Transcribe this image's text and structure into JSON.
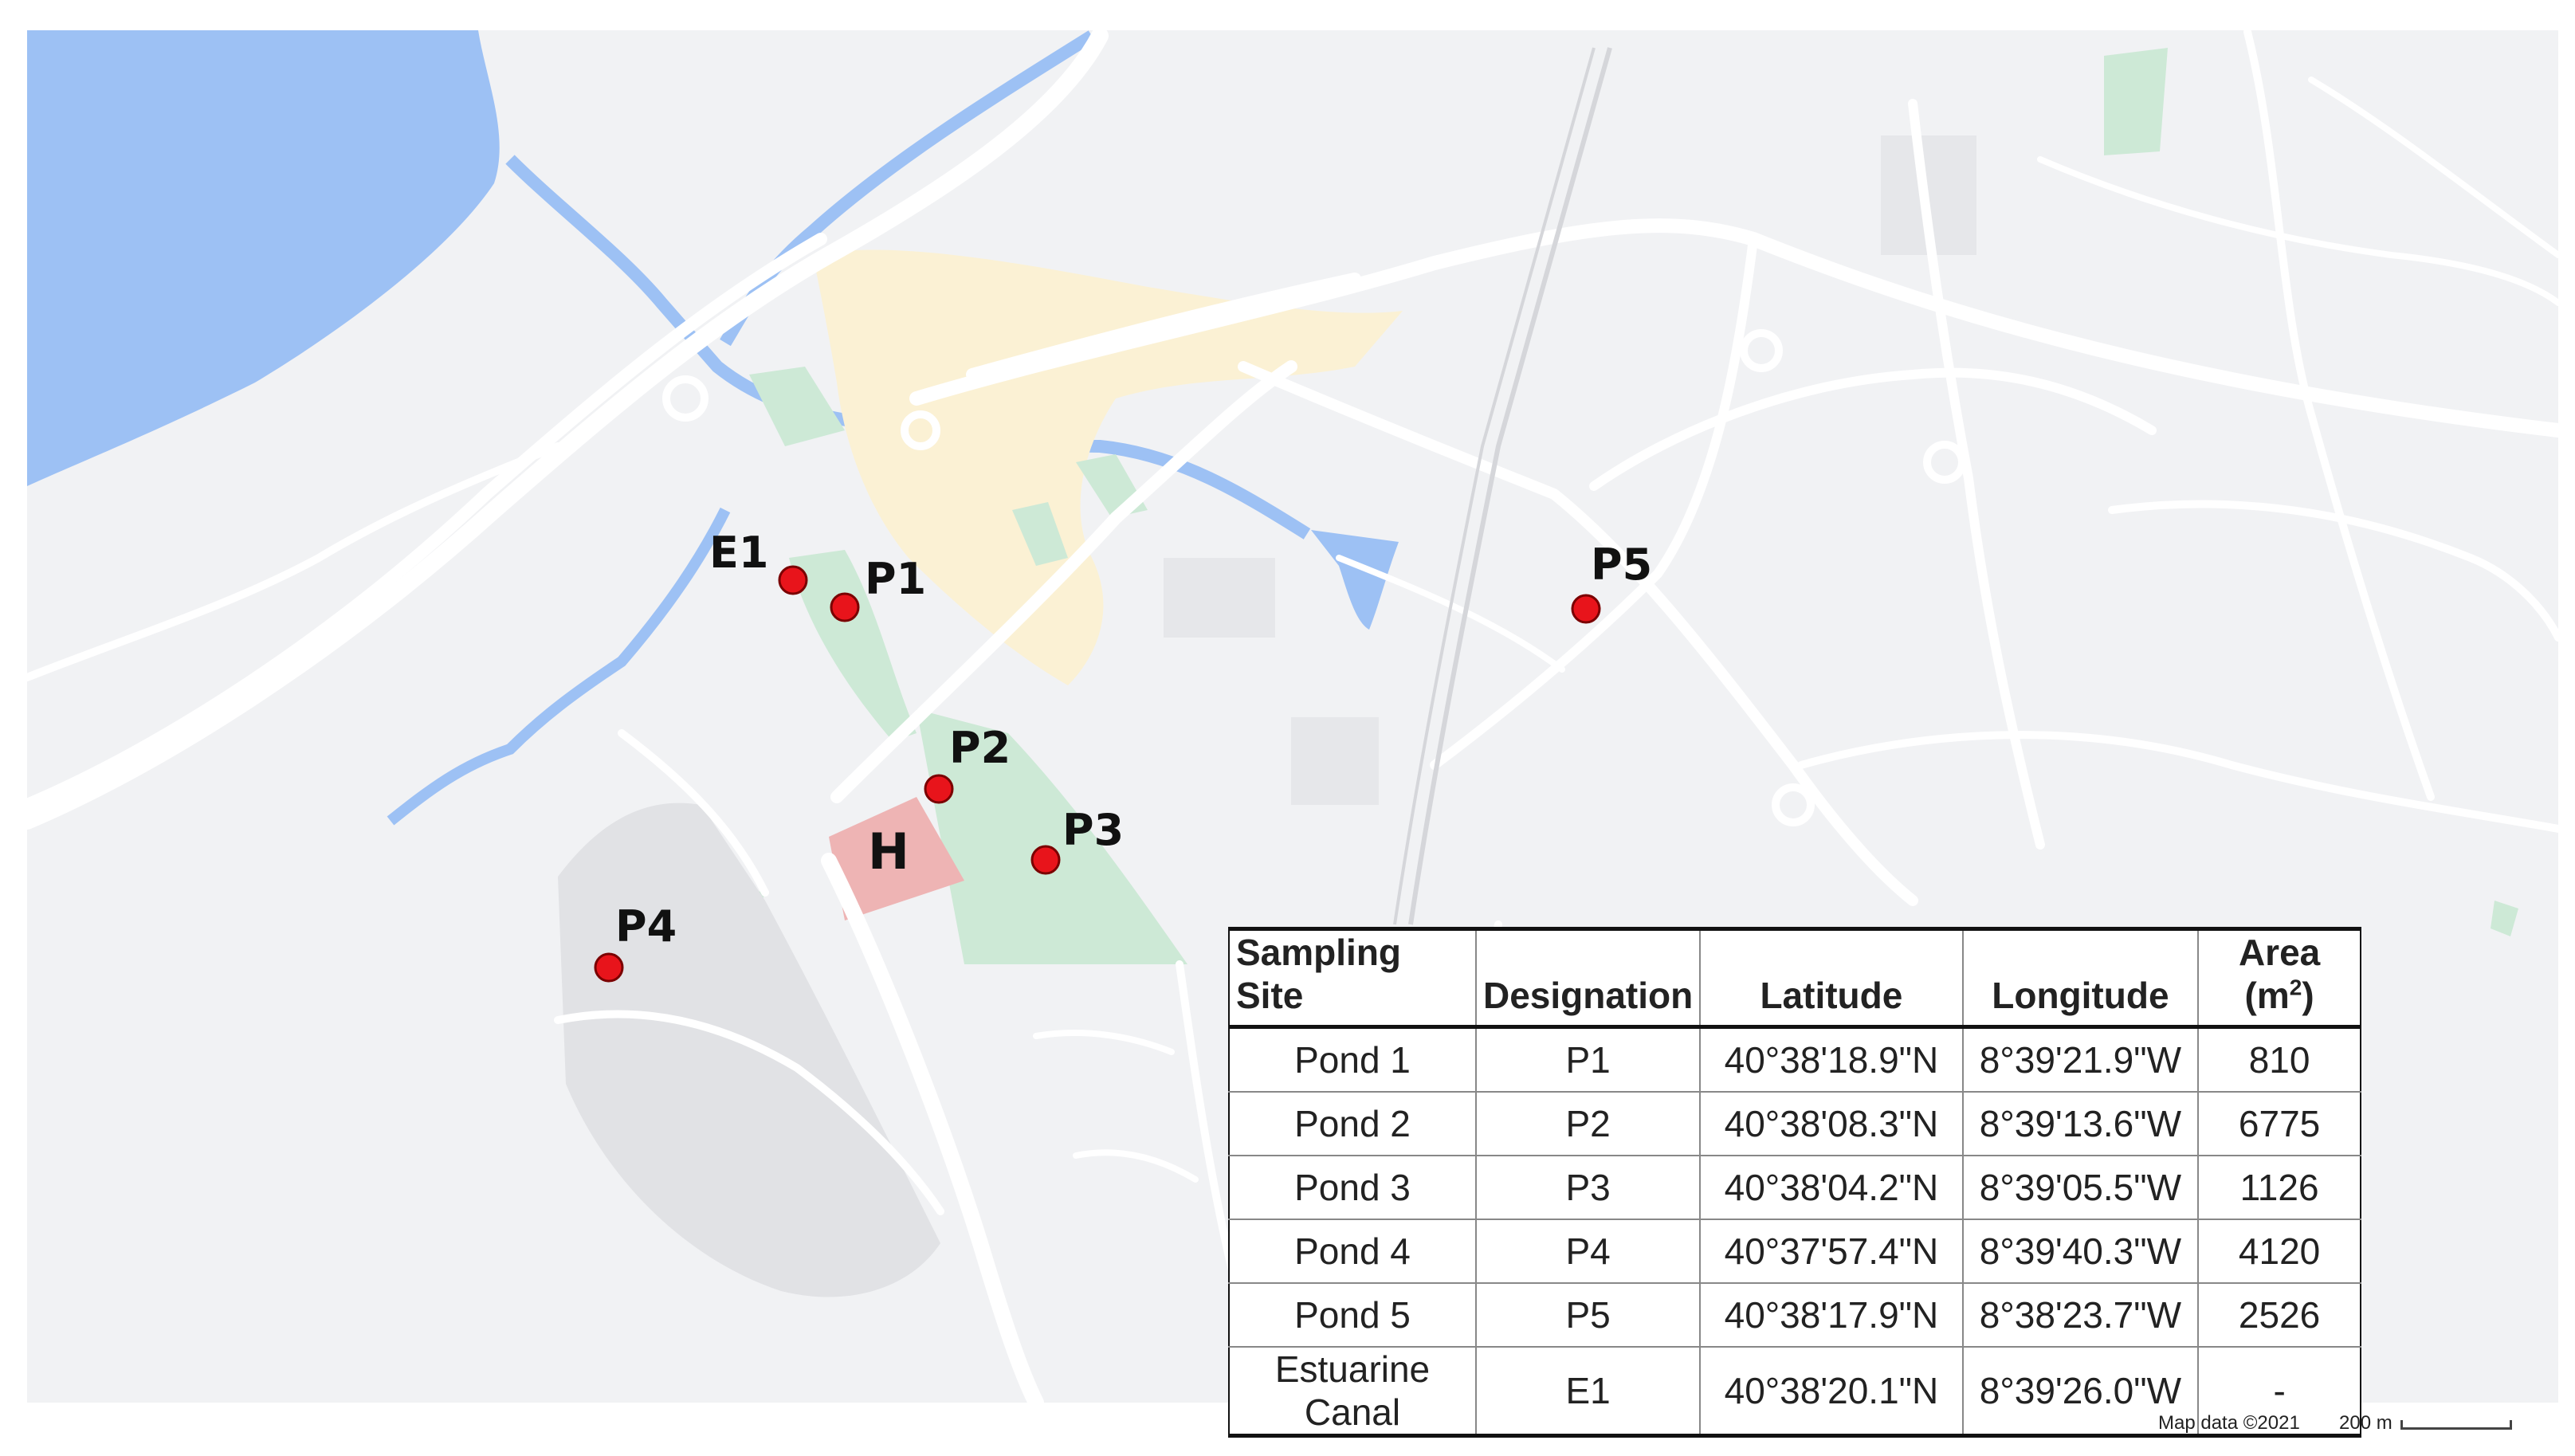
{
  "markers": [
    {
      "id": "e1",
      "label": "E1"
    },
    {
      "id": "p1",
      "label": "P1"
    },
    {
      "id": "p2",
      "label": "P2"
    },
    {
      "id": "p3",
      "label": "P3"
    },
    {
      "id": "p4",
      "label": "P4"
    },
    {
      "id": "p5",
      "label": "P5"
    }
  ],
  "hospital_label": "H",
  "colors": {
    "water": "#9dc1f4",
    "park": "#cde9d6",
    "hospital": "#eeb4b4",
    "marker": "#e8141b",
    "road": "#ffffff",
    "land": "#f1f2f4",
    "urban": "#fbf1d4"
  },
  "table": {
    "headers": [
      "Sampling Site",
      "Designation",
      "Latitude",
      "Longitude",
      "Area (m2)"
    ],
    "area_header_base": "Area (m",
    "area_header_sup": "2",
    "area_header_close": ")",
    "rows": [
      [
        "Pond 1",
        "P1",
        "40°38'18.9\"N",
        "8°39'21.9\"W",
        "810"
      ],
      [
        "Pond 2",
        "P2",
        "40°38'08.3\"N",
        "8°39'13.6\"W",
        "6775"
      ],
      [
        "Pond 3",
        "P3",
        "40°38'04.2\"N",
        "8°39'05.5\"W",
        "1126"
      ],
      [
        "Pond 4",
        "P4",
        "40°37'57.4\"N",
        "8°39'40.3\"W",
        "4120"
      ],
      [
        "Pond 5",
        "P5",
        "40°38'17.9\"N",
        "8°38'23.7\"W",
        "2526"
      ],
      [
        "Estuarine Canal",
        "E1",
        "40°38'20.1\"N",
        "8°39'26.0\"W",
        "-"
      ]
    ]
  },
  "attribution": "Map data ©2021",
  "scale_label": "200 m"
}
